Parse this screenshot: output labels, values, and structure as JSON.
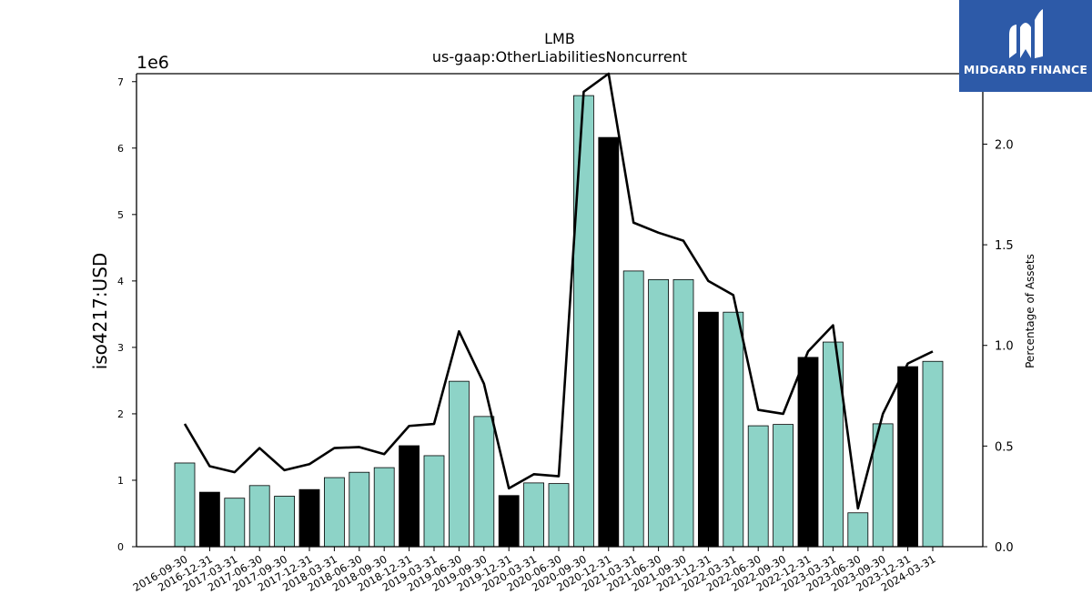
{
  "chart_data": {
    "type": "bar",
    "title": "LMB",
    "subtitle": "us-gaap:OtherLiabilitiesNoncurrent",
    "ylabel": "iso4217:USD",
    "y_offset_label": "1e6",
    "y2label": "Percentage of Assets",
    "ylim": [
      0,
      7.12
    ],
    "y2lim": [
      0,
      2.35
    ],
    "yticks": [
      "0",
      "1",
      "2",
      "3",
      "4",
      "5",
      "6",
      "7"
    ],
    "y2ticks": [
      "0.0",
      "0.5",
      "1.0",
      "1.5",
      "2.0"
    ],
    "grid": false,
    "bar_colors": {
      "quarter": "#8dd3c7",
      "year_end": "#000000",
      "edge": "#000000",
      "line": "#000000"
    },
    "categories": [
      "2016-09-30",
      "2016-12-31",
      "2017-03-31",
      "2017-06-30",
      "2017-09-30",
      "2017-12-31",
      "2018-03-31",
      "2018-06-30",
      "2018-09-30",
      "2018-12-31",
      "2019-03-31",
      "2019-06-30",
      "2019-09-30",
      "2019-12-31",
      "2020-03-31",
      "2020-06-30",
      "2020-09-30",
      "2020-12-31",
      "2021-03-31",
      "2021-06-30",
      "2021-09-30",
      "2021-12-31",
      "2022-03-31",
      "2022-06-30",
      "2022-09-30",
      "2022-12-31",
      "2023-03-31",
      "2023-06-30",
      "2023-09-30",
      "2023-12-31",
      "2024-03-31"
    ],
    "series": [
      {
        "type": "bar",
        "unit": "1e6 USD",
        "values": [
          1.26,
          0.82,
          0.73,
          0.92,
          0.76,
          0.86,
          1.04,
          1.12,
          1.19,
          1.52,
          1.37,
          2.49,
          1.96,
          0.77,
          0.96,
          0.95,
          6.79,
          6.16,
          4.15,
          4.02,
          4.02,
          3.53,
          3.53,
          1.82,
          1.84,
          2.85,
          3.08,
          0.51,
          1.85,
          2.71,
          2.79
        ]
      },
      {
        "type": "line",
        "axis": "right",
        "name": "Percentage of Assets",
        "values": [
          0.61,
          0.4,
          0.37,
          0.49,
          0.38,
          0.41,
          0.49,
          0.495,
          0.46,
          0.6,
          0.61,
          1.07,
          0.81,
          0.29,
          0.36,
          0.35,
          2.26,
          2.35,
          1.61,
          1.56,
          1.52,
          1.32,
          1.25,
          0.68,
          0.66,
          0.97,
          1.1,
          0.19,
          0.66,
          0.91,
          0.97
        ]
      }
    ]
  },
  "logo": {
    "text": "MIDGARD FINANCE"
  }
}
